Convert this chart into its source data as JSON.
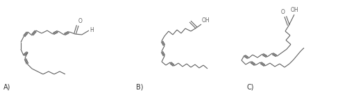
{
  "background_color": "#ffffff",
  "line_color": "#606060",
  "line_width": 0.8,
  "label_fontsize": 7,
  "text_color": "#333333",
  "labels": [
    "A)",
    "B)",
    "C)"
  ],
  "dpi": 100,
  "figsize": [
    5.0,
    1.37
  ]
}
